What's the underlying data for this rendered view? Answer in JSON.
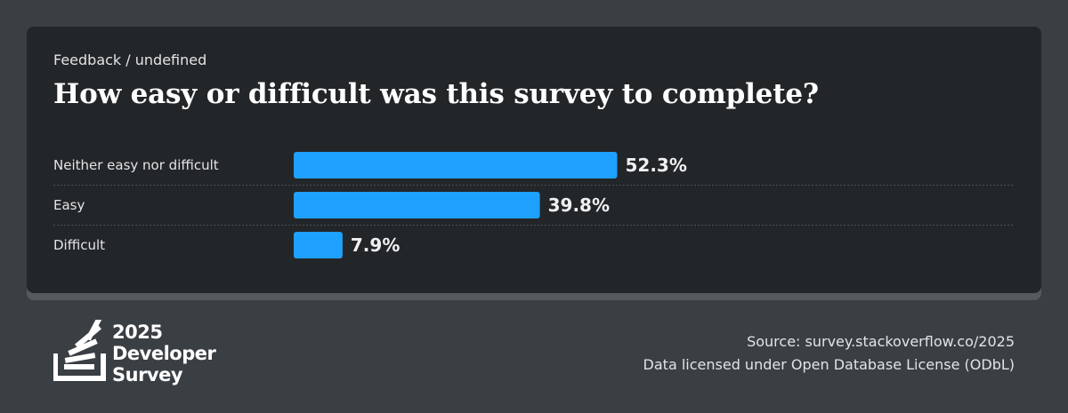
{
  "breadcrumb": "Feedback / undefined",
  "title": "How easy or difficult was this survey to complete?",
  "chart_data": {
    "type": "bar",
    "orientation": "horizontal",
    "categories": [
      "Neither easy nor difficult",
      "Easy",
      "Difficult"
    ],
    "values": [
      52.3,
      39.8,
      7.9
    ],
    "value_labels": [
      "52.3%",
      "39.8%",
      "7.9%"
    ],
    "unit": "%",
    "bar_color": "#1ea1fe",
    "grid": false
  },
  "logo": {
    "line1": "2025",
    "line2": "Developer",
    "line3": "Survey",
    "icon": "stack-overflow-logo-icon"
  },
  "footer": {
    "source": "Source: survey.stackoverflow.co/2025",
    "license": "Data licensed under Open Database License (ODbL)"
  }
}
